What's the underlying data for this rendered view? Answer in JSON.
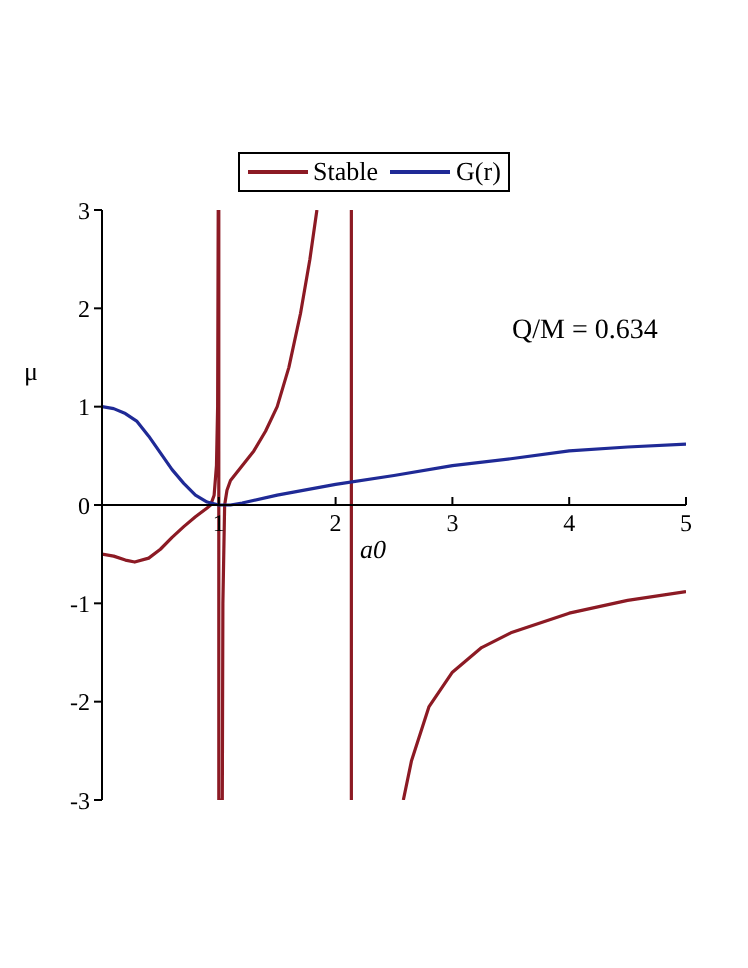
{
  "chart_data": {
    "type": "line",
    "xlabel": "a0",
    "ylabel": "μ",
    "xlim": [
      0,
      5
    ],
    "ylim": [
      -3,
      3
    ],
    "xticks": [
      1,
      2,
      3,
      4,
      5
    ],
    "yticks": [
      -3,
      -2,
      -1,
      0,
      1,
      2,
      3
    ],
    "grid": false,
    "legend": "top",
    "marker": "none",
    "line_style": "solid",
    "annotations": [
      "Q/M = 0.634"
    ],
    "series": [
      {
        "name": "Stable",
        "color": "#8c1a24",
        "x": [
          0,
          0.1,
          0.2,
          0.28,
          0.4,
          0.5,
          0.6,
          0.7,
          0.8,
          0.9,
          0.93,
          0.96,
          0.98,
          0.99,
          0.995,
          1.0,
          1.0,
          1.03,
          1.035,
          1.05,
          1.07,
          1.1,
          1.2,
          1.3,
          1.4,
          1.5,
          1.6,
          1.7,
          1.78,
          1.84,
          2.0,
          2.135,
          2.135,
          2.3,
          2.58,
          2.65,
          2.8,
          3.0,
          3.25,
          3.5,
          4.0,
          4.5,
          5.0
        ],
        "values": [
          -0.5,
          -0.52,
          -0.56,
          -0.58,
          -0.54,
          -0.45,
          -0.33,
          -0.22,
          -0.12,
          -0.03,
          0,
          0.1,
          0.4,
          1,
          3,
          3,
          -3,
          -3,
          -1,
          0,
          0.15,
          0.25,
          0.4,
          0.55,
          0.75,
          1.0,
          1.4,
          1.95,
          2.5,
          3,
          null,
          3,
          -3,
          null,
          -3,
          -2.6,
          -2.05,
          -1.7,
          -1.45,
          -1.3,
          -1.1,
          -0.97,
          -0.88
        ]
      },
      {
        "name": "G(r)",
        "color": "#1f2a96",
        "x": [
          0,
          0.1,
          0.2,
          0.3,
          0.4,
          0.5,
          0.6,
          0.7,
          0.8,
          0.9,
          1.0,
          1.1,
          1.2,
          1.5,
          2.0,
          2.5,
          3.0,
          3.5,
          4.0,
          4.5,
          5.0
        ],
        "values": [
          1,
          0.98,
          0.93,
          0.85,
          0.7,
          0.53,
          0.36,
          0.22,
          0.1,
          0.03,
          0,
          0,
          0.02,
          0.1,
          0.21,
          0.3,
          0.4,
          0.47,
          0.55,
          0.59,
          0.62
        ]
      }
    ]
  }
}
